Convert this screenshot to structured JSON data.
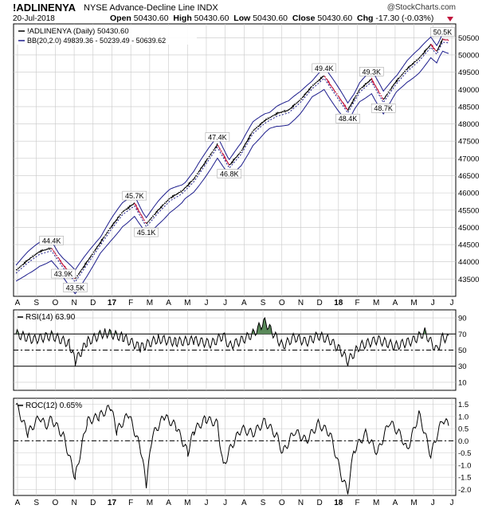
{
  "header": {
    "symbol": "!ADLINENYA",
    "name": "NYSE Advance-Decline Line  INDX",
    "source": "@StockCharts.com",
    "date": "20-Jul-2018",
    "open_label": "Open",
    "open": "50430.60",
    "high_label": "High",
    "high": "50430.60",
    "low_label": "Low",
    "low": "50430.60",
    "close_label": "Close",
    "close": "50430.60",
    "chg_label": "Chg",
    "chg": "-17.30 (-0.03%)"
  },
  "colors": {
    "up": "#000000",
    "down": "#c0143c",
    "band": "#1c1c8c",
    "rsi_fill": "#5a8a5a",
    "grid": "#c8c8c8"
  },
  "chart_data": [
    {
      "type": "line",
      "title": "!ADLINENYA (Daily) 50430.60",
      "legend": [
        "!ADLINENYA (Daily) 50430.60",
        "BB(20,2.0) 49839.36 - 50239.49 - 50639.62"
      ],
      "legend_position": "top-left",
      "x_ticks": [
        "A",
        "S",
        "O",
        "N",
        "D",
        "17",
        "F",
        "M",
        "A",
        "M",
        "J",
        "J",
        "A",
        "S",
        "O",
        "N",
        "D",
        "18",
        "F",
        "M",
        "A",
        "M",
        "J",
        "J"
      ],
      "y_ticks": [
        43500,
        44000,
        44500,
        45000,
        45500,
        46000,
        46500,
        47000,
        47500,
        48000,
        48500,
        49000,
        49500,
        50000,
        50500
      ],
      "ylim": [
        43000,
        50900
      ],
      "grid": true,
      "series_points": [
        [
          0,
          43750
        ],
        [
          2,
          44050
        ],
        [
          4,
          44300
        ],
        [
          6,
          44400
        ],
        [
          8,
          43900
        ],
        [
          10,
          43500
        ],
        [
          12,
          44000
        ],
        [
          14,
          44500
        ],
        [
          16,
          45000
        ],
        [
          18,
          45450
        ],
        [
          20,
          45700
        ],
        [
          22,
          45100
        ],
        [
          24,
          45500
        ],
        [
          26,
          45850
        ],
        [
          28,
          46050
        ],
        [
          30,
          46400
        ],
        [
          32,
          46900
        ],
        [
          34,
          47400
        ],
        [
          36,
          46800
        ],
        [
          38,
          47200
        ],
        [
          40,
          47800
        ],
        [
          42,
          48100
        ],
        [
          44,
          48300
        ],
        [
          46,
          48400
        ],
        [
          48,
          48700
        ],
        [
          50,
          49100
        ],
        [
          52,
          49400
        ],
        [
          54,
          48900
        ],
        [
          56,
          48400
        ],
        [
          58,
          49000
        ],
        [
          60,
          49300
        ],
        [
          62,
          48700
        ],
        [
          64,
          49200
        ],
        [
          66,
          49600
        ],
        [
          68,
          49900
        ],
        [
          70,
          50300
        ],
        [
          71,
          50100
        ],
        [
          72,
          50450
        ],
        [
          73,
          50430
        ]
      ],
      "annotations": [
        {
          "label": "44.4K",
          "x": 6,
          "y": 44400
        },
        {
          "label": "43.9K",
          "x": 8,
          "y": 43900
        },
        {
          "label": "43.5K",
          "x": 10,
          "y": 43500
        },
        {
          "label": "45.7K",
          "x": 20,
          "y": 45700
        },
        {
          "label": "45.1K",
          "x": 22,
          "y": 45100
        },
        {
          "label": "47.4K",
          "x": 34,
          "y": 47400
        },
        {
          "label": "46.8K",
          "x": 36,
          "y": 46800
        },
        {
          "label": "49.4K",
          "x": 52,
          "y": 49400
        },
        {
          "label": "49.3K",
          "x": 60,
          "y": 49300
        },
        {
          "label": "48.4K",
          "x": 56,
          "y": 48400
        },
        {
          "label": "48.7K",
          "x": 62,
          "y": 48700
        },
        {
          "label": "50.5K",
          "x": 72,
          "y": 50450
        }
      ]
    },
    {
      "type": "line",
      "title": "RSI(14) 63.90",
      "legend_position": "top-left",
      "y_ticks": [
        10,
        30,
        50,
        70,
        90
      ],
      "ylim": [
        0,
        100
      ],
      "reference_lines": [
        30,
        50,
        70
      ],
      "series_points": [
        [
          0,
          70
        ],
        [
          3,
          63
        ],
        [
          6,
          68
        ],
        [
          9,
          58
        ],
        [
          10,
          36
        ],
        [
          12,
          60
        ],
        [
          15,
          72
        ],
        [
          18,
          66
        ],
        [
          21,
          53
        ],
        [
          24,
          64
        ],
        [
          27,
          60
        ],
        [
          30,
          62
        ],
        [
          33,
          58
        ],
        [
          35,
          68
        ],
        [
          36,
          55
        ],
        [
          38,
          62
        ],
        [
          40,
          70
        ],
        [
          41,
          78
        ],
        [
          42,
          86
        ],
        [
          43,
          75
        ],
        [
          45,
          55
        ],
        [
          47,
          66
        ],
        [
          49,
          60
        ],
        [
          51,
          68
        ],
        [
          53,
          62
        ],
        [
          55,
          48
        ],
        [
          56,
          36
        ],
        [
          58,
          55
        ],
        [
          61,
          63
        ],
        [
          64,
          55
        ],
        [
          67,
          62
        ],
        [
          69,
          72
        ],
        [
          70,
          60
        ],
        [
          71,
          50
        ],
        [
          72,
          66
        ],
        [
          73,
          64
        ]
      ]
    },
    {
      "type": "line",
      "title": "ROC(12) 0.65%",
      "legend_position": "top-left",
      "y_ticks": [
        -2.0,
        -1.5,
        -1.0,
        -0.5,
        0.0,
        0.5,
        1.0,
        1.5
      ],
      "ylim": [
        -2.25,
        1.75
      ],
      "reference_lines": [
        0
      ],
      "series_points": [
        [
          0,
          1.5
        ],
        [
          2,
          0.3
        ],
        [
          4,
          1.0
        ],
        [
          5,
          0.6
        ],
        [
          6,
          0.9
        ],
        [
          8,
          0.2
        ],
        [
          10,
          -1.5
        ],
        [
          12,
          0.8
        ],
        [
          14,
          1.0
        ],
        [
          16,
          1.4
        ],
        [
          17,
          0.4
        ],
        [
          19,
          1.1
        ],
        [
          21,
          -0.3
        ],
        [
          22,
          -1.8
        ],
        [
          23,
          0.2
        ],
        [
          25,
          1.0
        ],
        [
          27,
          0.6
        ],
        [
          29,
          -0.5
        ],
        [
          30,
          0.4
        ],
        [
          32,
          0.9
        ],
        [
          34,
          0.7
        ],
        [
          35,
          -1.1
        ],
        [
          36,
          -0.4
        ],
        [
          38,
          0.5
        ],
        [
          40,
          0.3
        ],
        [
          42,
          0.8
        ],
        [
          44,
          0.2
        ],
        [
          45,
          -0.5
        ],
        [
          47,
          0.4
        ],
        [
          49,
          0.0
        ],
        [
          51,
          0.7
        ],
        [
          53,
          0.3
        ],
        [
          54,
          -0.6
        ],
        [
          55,
          -1.5
        ],
        [
          56,
          -2.1
        ],
        [
          57,
          -0.4
        ],
        [
          59,
          0.3
        ],
        [
          61,
          -0.5
        ],
        [
          63,
          0.8
        ],
        [
          65,
          0.2
        ],
        [
          66,
          -0.4
        ],
        [
          68,
          1.1
        ],
        [
          69,
          0.3
        ],
        [
          70,
          -0.6
        ],
        [
          71,
          0.2
        ],
        [
          72,
          0.9
        ],
        [
          73,
          0.65
        ]
      ]
    }
  ]
}
